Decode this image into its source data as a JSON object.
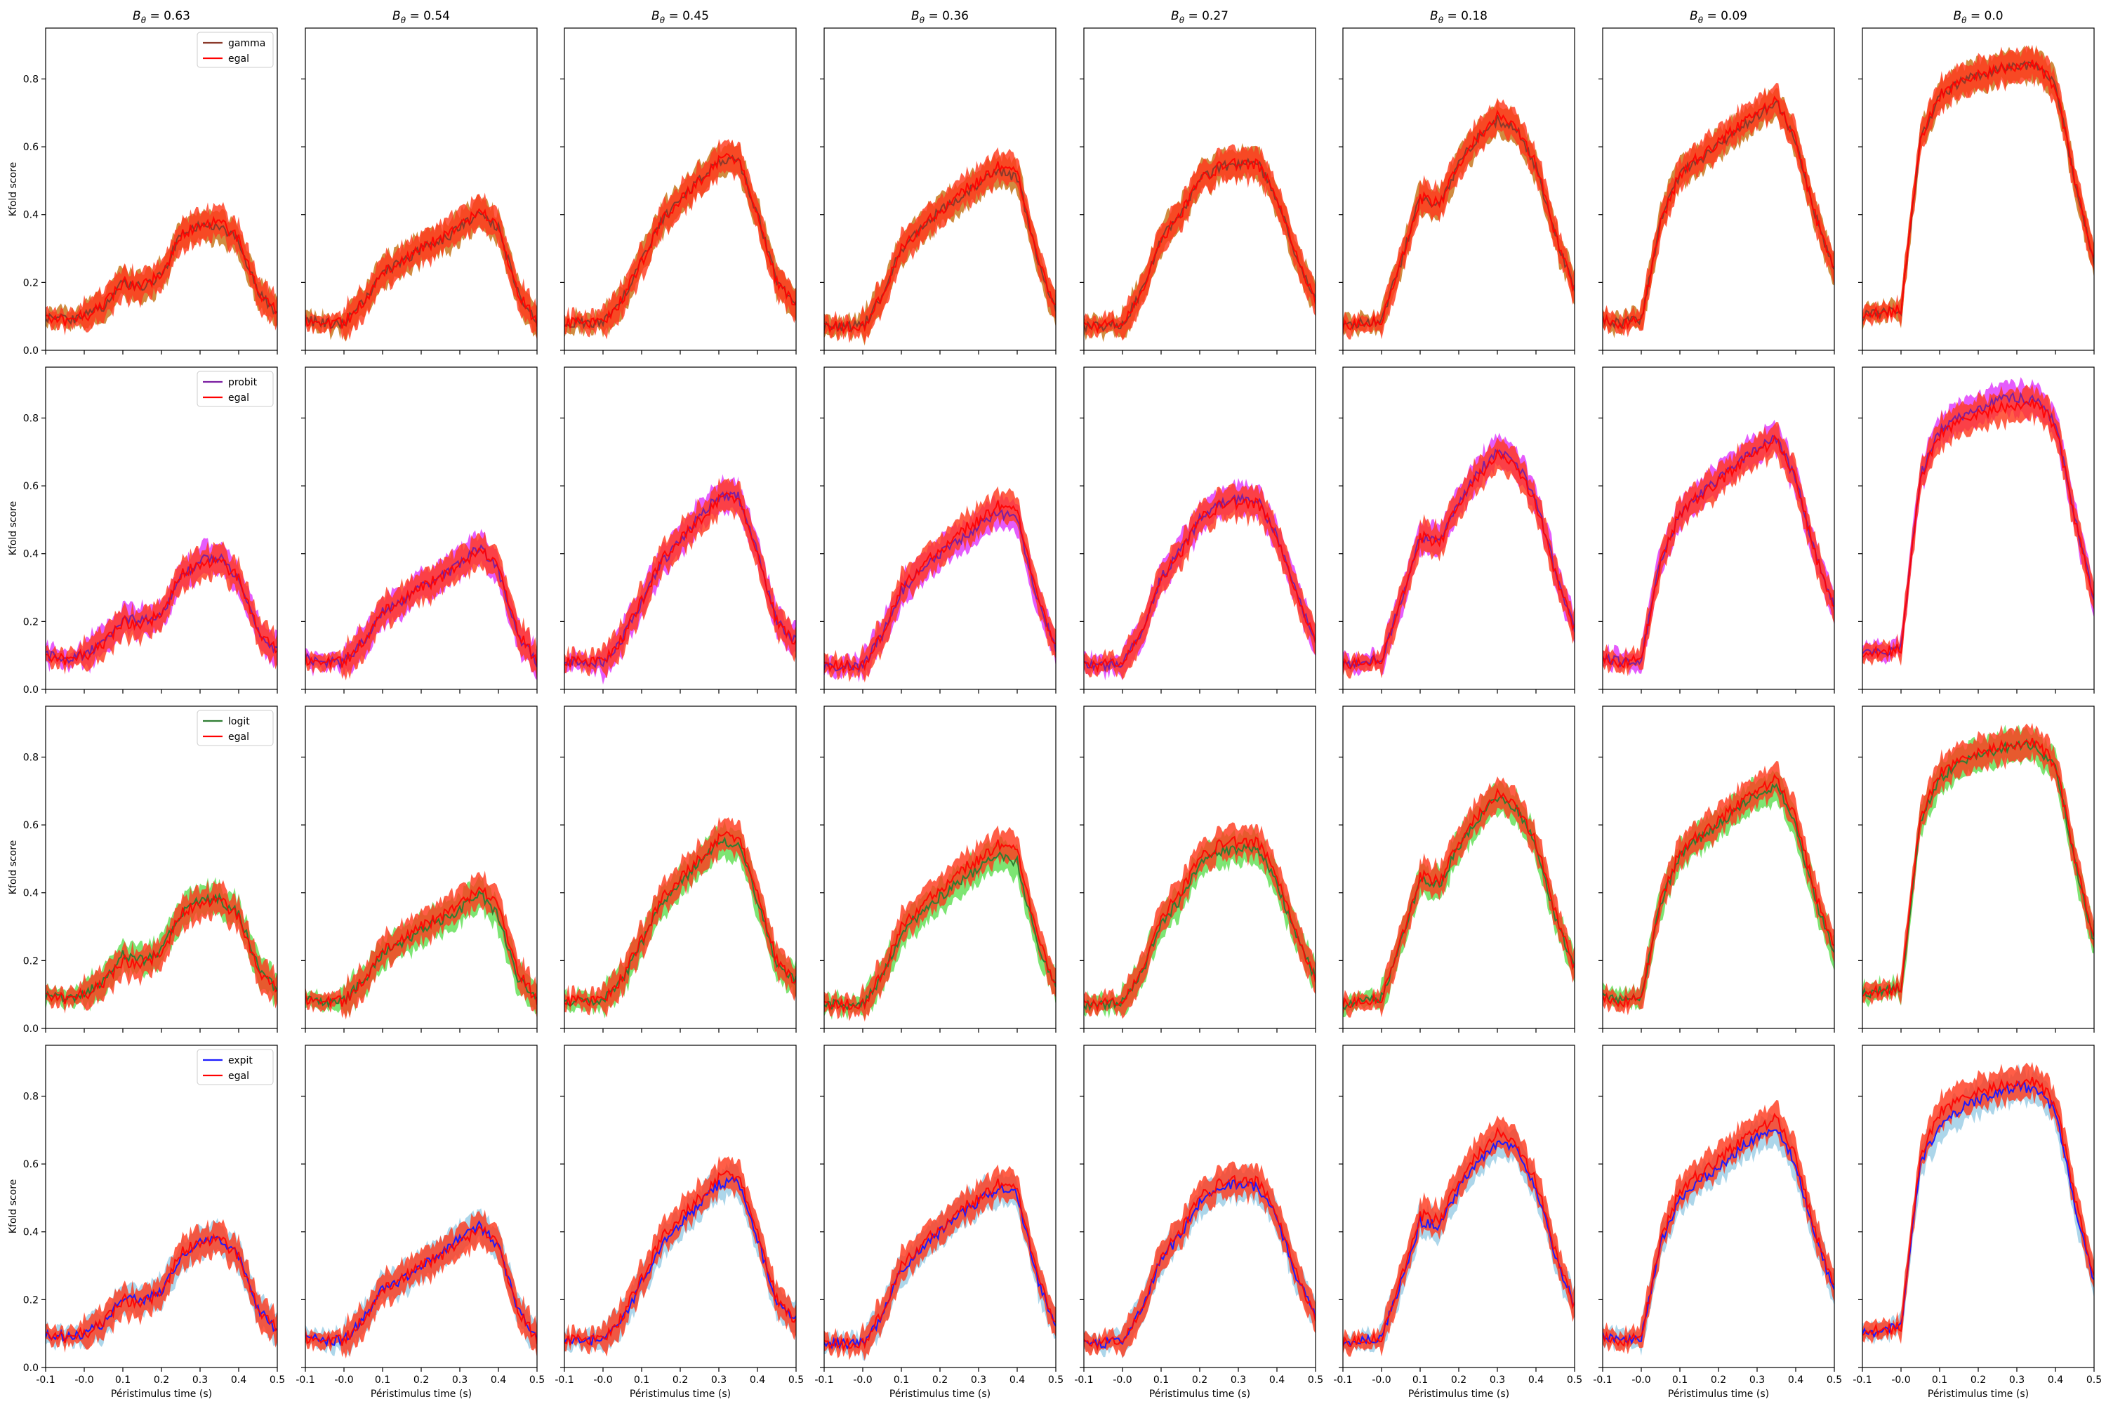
{
  "chart_data": {
    "type": "line",
    "layout": {
      "rows": 4,
      "cols": 8,
      "shared_x": true,
      "shared_y": true
    },
    "column_titles": [
      "$B_\\theta = 0.63$",
      "$B_\\theta = 0.54$",
      "$B_\\theta = 0.45$",
      "$B_\\theta = 0.36$",
      "$B_\\theta = 0.27$",
      "$B_\\theta = 0.18$",
      "$B_\\theta = 0.09$",
      "$B_\\theta = 0.0$"
    ],
    "column_title_parts": [
      {
        "name": "B",
        "sub": "θ",
        "rest": " = 0.63"
      },
      {
        "name": "B",
        "sub": "θ",
        "rest": " = 0.54"
      },
      {
        "name": "B",
        "sub": "θ",
        "rest": " = 0.45"
      },
      {
        "name": "B",
        "sub": "θ",
        "rest": " = 0.36"
      },
      {
        "name": "B",
        "sub": "θ",
        "rest": " = 0.27"
      },
      {
        "name": "B",
        "sub": "θ",
        "rest": " = 0.18"
      },
      {
        "name": "B",
        "sub": "θ",
        "rest": " = 0.09"
      },
      {
        "name": "B",
        "sub": "θ",
        "rest": " = 0.0"
      }
    ],
    "xlabel": "Péristimulus time (s)",
    "ylabel": "Kfold score",
    "xlim": [
      -0.1,
      0.5
    ],
    "ylim": [
      0.0,
      0.95
    ],
    "xticks": [
      -0.1,
      0.0,
      0.1,
      0.2,
      0.3,
      0.4,
      0.5
    ],
    "xtick_labels": [
      "-0.1",
      "-0.0",
      "0.1",
      "0.2",
      "0.3",
      "0.4",
      "0.5"
    ],
    "yticks": [
      0.0,
      0.2,
      0.4,
      0.6,
      0.8
    ],
    "ytick_labels": [
      "0.0",
      "0.2",
      "0.4",
      "0.6",
      "0.8"
    ],
    "legend_position": "top-right",
    "rows": [
      {
        "model": "gamma",
        "line_color": "#8b3a2b",
        "band_color": "#c8781e"
      },
      {
        "model": "probit",
        "line_color": "#7b1fa2",
        "band_color": "#e040fb"
      },
      {
        "model": "logit",
        "line_color": "#2e7d32",
        "band_color": "#66e05a"
      },
      {
        "model": "expit",
        "line_color": "#1a1aff",
        "band_color": "#9ecfe6"
      }
    ],
    "reference_series": {
      "name": "egal",
      "line_color": "#ff0000",
      "band_color": "#ff3b1f"
    },
    "x": [
      -0.1,
      -0.05,
      0.0,
      0.05,
      0.1,
      0.15,
      0.2,
      0.25,
      0.3,
      0.35,
      0.4,
      0.45,
      0.5
    ],
    "panels": [
      {
        "egal": [
          0.1,
          0.09,
          0.1,
          0.13,
          0.2,
          0.19,
          0.22,
          0.34,
          0.37,
          0.38,
          0.33,
          0.17,
          0.11
        ],
        "rows": [
          [
            0.1,
            0.09,
            0.1,
            0.13,
            0.2,
            0.19,
            0.22,
            0.34,
            0.37,
            0.37,
            0.32,
            0.17,
            0.11
          ],
          [
            0.1,
            0.09,
            0.1,
            0.14,
            0.21,
            0.2,
            0.22,
            0.33,
            0.38,
            0.39,
            0.33,
            0.17,
            0.11
          ],
          [
            0.1,
            0.09,
            0.1,
            0.14,
            0.22,
            0.2,
            0.23,
            0.34,
            0.38,
            0.38,
            0.34,
            0.18,
            0.11
          ],
          [
            0.1,
            0.09,
            0.1,
            0.13,
            0.21,
            0.2,
            0.22,
            0.33,
            0.37,
            0.38,
            0.33,
            0.17,
            0.11
          ]
        ]
      },
      {
        "egal": [
          0.09,
          0.08,
          0.08,
          0.14,
          0.23,
          0.26,
          0.3,
          0.33,
          0.36,
          0.42,
          0.36,
          0.17,
          0.08
        ],
        "rows": [
          [
            0.09,
            0.08,
            0.08,
            0.14,
            0.23,
            0.26,
            0.3,
            0.32,
            0.36,
            0.41,
            0.36,
            0.17,
            0.08
          ],
          [
            0.09,
            0.08,
            0.08,
            0.14,
            0.23,
            0.26,
            0.3,
            0.33,
            0.37,
            0.42,
            0.35,
            0.16,
            0.08
          ],
          [
            0.09,
            0.08,
            0.08,
            0.14,
            0.22,
            0.25,
            0.29,
            0.32,
            0.35,
            0.4,
            0.33,
            0.15,
            0.08
          ],
          [
            0.09,
            0.08,
            0.08,
            0.14,
            0.23,
            0.26,
            0.3,
            0.33,
            0.38,
            0.42,
            0.36,
            0.17,
            0.08
          ]
        ]
      },
      {
        "egal": [
          0.08,
          0.08,
          0.08,
          0.15,
          0.26,
          0.38,
          0.44,
          0.5,
          0.56,
          0.57,
          0.4,
          0.2,
          0.14
        ],
        "rows": [
          [
            0.08,
            0.08,
            0.08,
            0.15,
            0.26,
            0.38,
            0.44,
            0.51,
            0.56,
            0.56,
            0.4,
            0.2,
            0.14
          ],
          [
            0.08,
            0.08,
            0.08,
            0.15,
            0.26,
            0.37,
            0.44,
            0.51,
            0.57,
            0.57,
            0.4,
            0.2,
            0.14
          ],
          [
            0.08,
            0.08,
            0.08,
            0.14,
            0.25,
            0.36,
            0.43,
            0.49,
            0.55,
            0.55,
            0.38,
            0.19,
            0.14
          ],
          [
            0.08,
            0.08,
            0.08,
            0.14,
            0.25,
            0.36,
            0.42,
            0.48,
            0.54,
            0.55,
            0.38,
            0.19,
            0.14
          ]
        ]
      },
      {
        "egal": [
          0.07,
          0.07,
          0.07,
          0.16,
          0.3,
          0.36,
          0.41,
          0.46,
          0.5,
          0.54,
          0.52,
          0.28,
          0.12
        ],
        "rows": [
          [
            0.07,
            0.07,
            0.07,
            0.16,
            0.3,
            0.36,
            0.41,
            0.45,
            0.49,
            0.53,
            0.51,
            0.28,
            0.12
          ],
          [
            0.07,
            0.07,
            0.07,
            0.16,
            0.29,
            0.35,
            0.4,
            0.44,
            0.48,
            0.52,
            0.5,
            0.27,
            0.12
          ],
          [
            0.07,
            0.07,
            0.07,
            0.15,
            0.28,
            0.34,
            0.39,
            0.43,
            0.47,
            0.51,
            0.49,
            0.26,
            0.12
          ],
          [
            0.07,
            0.07,
            0.07,
            0.15,
            0.29,
            0.35,
            0.4,
            0.45,
            0.49,
            0.53,
            0.51,
            0.27,
            0.12
          ]
        ]
      },
      {
        "egal": [
          0.07,
          0.07,
          0.08,
          0.17,
          0.33,
          0.4,
          0.5,
          0.54,
          0.55,
          0.55,
          0.45,
          0.28,
          0.15
        ],
        "rows": [
          [
            0.07,
            0.07,
            0.08,
            0.17,
            0.33,
            0.4,
            0.5,
            0.54,
            0.55,
            0.55,
            0.45,
            0.28,
            0.15
          ],
          [
            0.07,
            0.07,
            0.08,
            0.17,
            0.33,
            0.41,
            0.5,
            0.55,
            0.56,
            0.56,
            0.45,
            0.28,
            0.15
          ],
          [
            0.07,
            0.07,
            0.08,
            0.16,
            0.31,
            0.38,
            0.48,
            0.52,
            0.53,
            0.53,
            0.43,
            0.27,
            0.15
          ],
          [
            0.07,
            0.07,
            0.08,
            0.17,
            0.32,
            0.39,
            0.49,
            0.53,
            0.54,
            0.53,
            0.44,
            0.27,
            0.15
          ]
        ]
      },
      {
        "egal": [
          0.07,
          0.08,
          0.09,
          0.26,
          0.45,
          0.43,
          0.55,
          0.63,
          0.69,
          0.66,
          0.55,
          0.34,
          0.18
        ],
        "rows": [
          [
            0.07,
            0.08,
            0.09,
            0.26,
            0.45,
            0.43,
            0.55,
            0.63,
            0.68,
            0.65,
            0.54,
            0.34,
            0.18
          ],
          [
            0.07,
            0.08,
            0.09,
            0.26,
            0.45,
            0.44,
            0.55,
            0.64,
            0.7,
            0.67,
            0.56,
            0.35,
            0.18
          ],
          [
            0.07,
            0.08,
            0.09,
            0.25,
            0.44,
            0.42,
            0.54,
            0.62,
            0.68,
            0.65,
            0.54,
            0.33,
            0.18
          ],
          [
            0.07,
            0.08,
            0.09,
            0.25,
            0.43,
            0.42,
            0.53,
            0.61,
            0.66,
            0.64,
            0.53,
            0.33,
            0.18
          ]
        ]
      },
      {
        "egal": [
          0.09,
          0.08,
          0.09,
          0.38,
          0.52,
          0.57,
          0.61,
          0.66,
          0.7,
          0.74,
          0.62,
          0.4,
          0.24
        ],
        "rows": [
          [
            0.09,
            0.08,
            0.09,
            0.38,
            0.52,
            0.56,
            0.6,
            0.65,
            0.69,
            0.73,
            0.62,
            0.4,
            0.24
          ],
          [
            0.09,
            0.08,
            0.09,
            0.38,
            0.52,
            0.57,
            0.62,
            0.67,
            0.71,
            0.74,
            0.62,
            0.4,
            0.24
          ],
          [
            0.09,
            0.08,
            0.09,
            0.37,
            0.51,
            0.56,
            0.6,
            0.65,
            0.69,
            0.72,
            0.6,
            0.38,
            0.23
          ],
          [
            0.09,
            0.08,
            0.09,
            0.37,
            0.5,
            0.55,
            0.59,
            0.64,
            0.68,
            0.71,
            0.6,
            0.38,
            0.23
          ]
        ]
      },
      {
        "egal": [
          0.1,
          0.11,
          0.12,
          0.62,
          0.75,
          0.79,
          0.81,
          0.83,
          0.84,
          0.84,
          0.78,
          0.5,
          0.26
        ],
        "rows": [
          [
            0.1,
            0.11,
            0.12,
            0.62,
            0.75,
            0.79,
            0.81,
            0.83,
            0.84,
            0.84,
            0.78,
            0.5,
            0.26
          ],
          [
            0.1,
            0.11,
            0.12,
            0.63,
            0.76,
            0.8,
            0.83,
            0.85,
            0.86,
            0.85,
            0.79,
            0.51,
            0.26
          ],
          [
            0.1,
            0.11,
            0.12,
            0.61,
            0.74,
            0.78,
            0.8,
            0.82,
            0.84,
            0.83,
            0.77,
            0.49,
            0.25
          ],
          [
            0.1,
            0.11,
            0.12,
            0.6,
            0.72,
            0.76,
            0.79,
            0.81,
            0.83,
            0.82,
            0.76,
            0.48,
            0.25
          ]
        ]
      }
    ]
  }
}
